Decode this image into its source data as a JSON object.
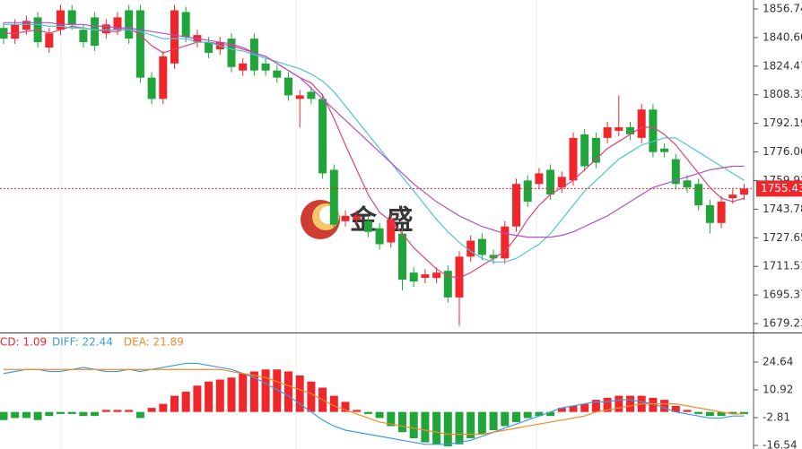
{
  "chart_data": [
    {
      "type": "candlestick",
      "ylim": [
        1674.2,
        1861.8
      ],
      "yticks": [
        1856.74,
        {
          "value": 1840.6,
          "label": "1840.60"
        },
        1824.47,
        1808.33,
        1792.19,
        1776.06,
        1759.92,
        1743.78,
        1727.65,
        1711.51,
        1695.37,
        1679.23
      ],
      "up_color": "#f0262b",
      "down_color": "#1fa53a",
      "open": [
        1846,
        1840,
        1845,
        1852,
        1835,
        1845,
        1856,
        1845,
        1852,
        1843,
        1845,
        1856,
        1856,
        1818,
        1806,
        1826,
        1855,
        1838,
        1838,
        1834,
        1840,
        1822,
        1840,
        1826,
        1822,
        1818,
        1806,
        1810,
        1806,
        1766,
        1737,
        1738,
        1737,
        1733,
        1725,
        1730,
        1708,
        1705,
        1705,
        1709,
        1694,
        1717,
        1727,
        1718,
        1716,
        1734,
        1760,
        1758,
        1766,
        1756,
        1760,
        1786,
        1784,
        1784,
        1788,
        1790,
        1784,
        1800,
        1778,
        1772,
        1760,
        1758,
        1746,
        1736,
        1750,
        1752
      ],
      "high": [
        1849,
        1851,
        1853,
        1855,
        1846,
        1859,
        1859,
        1848,
        1855,
        1851,
        1855,
        1859,
        1859,
        1821,
        1833,
        1859,
        1858,
        1845,
        1841,
        1841,
        1843,
        1829,
        1843,
        1829,
        1825,
        1821,
        1811,
        1813,
        1809,
        1769,
        1743,
        1743,
        1740,
        1736,
        1741,
        1733,
        1711,
        1710,
        1711,
        1712,
        1720,
        1729,
        1730,
        1721,
        1737,
        1761,
        1763,
        1767,
        1769,
        1765,
        1787,
        1789,
        1787,
        1793,
        1808,
        1793,
        1803,
        1803,
        1781,
        1775,
        1763,
        1761,
        1749,
        1751,
        1755,
        1758
      ],
      "low": [
        1837,
        1837,
        1842,
        1835,
        1832,
        1842,
        1845,
        1835,
        1833,
        1840,
        1842,
        1837,
        1815,
        1803,
        1803,
        1823,
        1838,
        1835,
        1829,
        1831,
        1821,
        1819,
        1819,
        1819,
        1815,
        1805,
        1790,
        1803,
        1761,
        1732,
        1734,
        1735,
        1728,
        1721,
        1722,
        1698,
        1700,
        1702,
        1702,
        1691,
        1678,
        1714,
        1715,
        1713,
        1713,
        1731,
        1745,
        1755,
        1749,
        1753,
        1757,
        1765,
        1767,
        1781,
        1785,
        1783,
        1781,
        1773,
        1773,
        1755,
        1753,
        1743,
        1730,
        1733,
        1747,
        1749
      ],
      "close": [
        1840,
        1848,
        1850,
        1838,
        1843,
        1856,
        1848,
        1838,
        1836,
        1848,
        1852,
        1840,
        1818,
        1806,
        1830,
        1856,
        1841,
        1842,
        1832,
        1838,
        1824,
        1826,
        1822,
        1822,
        1818,
        1808,
        1808,
        1806,
        1764,
        1735,
        1740,
        1740,
        1731,
        1724,
        1738,
        1704,
        1703,
        1707,
        1708,
        1694,
        1717,
        1726,
        1718,
        1716,
        1734,
        1758,
        1748,
        1764,
        1752,
        1762,
        1784,
        1768,
        1770,
        1790,
        1790,
        1786,
        1800,
        1776,
        1776,
        1758,
        1756,
        1746,
        1736,
        1748,
        1752,
        1755.43
      ],
      "series": [
        {
          "color": "#e0407a",
          "values": [
            1843,
            1843,
            1844,
            1845,
            1843,
            1845,
            1847,
            1846,
            1845,
            1844,
            1844,
            1846,
            1842,
            1836,
            1832,
            1834,
            1836,
            1838,
            1838,
            1837,
            1836,
            1834,
            1832,
            1830,
            1826,
            1822,
            1818,
            1815,
            1808,
            1795,
            1780,
            1766,
            1752,
            1742,
            1737,
            1730,
            1722,
            1716,
            1710,
            1706,
            1705,
            1708,
            1712,
            1716,
            1720,
            1728,
            1738,
            1746,
            1752,
            1756,
            1760,
            1766,
            1772,
            1778,
            1782,
            1786,
            1790,
            1790,
            1786,
            1780,
            1772,
            1764,
            1756,
            1750,
            1748,
            1750
          ]
        },
        {
          "color": "#4cc3d9",
          "values": [
            1848,
            1848,
            1848,
            1848,
            1847,
            1847,
            1846,
            1846,
            1845,
            1845,
            1845,
            1845,
            1844,
            1842,
            1840,
            1840,
            1840,
            1838,
            1838,
            1836,
            1834,
            1833,
            1831,
            1829,
            1827,
            1825,
            1823,
            1820,
            1816,
            1810,
            1802,
            1794,
            1786,
            1778,
            1770,
            1762,
            1754,
            1746,
            1738,
            1731,
            1725,
            1720,
            1716,
            1714,
            1714,
            1716,
            1720,
            1724,
            1730,
            1738,
            1746,
            1754,
            1760,
            1766,
            1772,
            1776,
            1780,
            1782,
            1784,
            1784,
            1780,
            1776,
            1772,
            1768,
            1764,
            1760
          ]
        },
        {
          "color": "#b04fc8",
          "values": [
            1849,
            1849,
            1849,
            1849,
            1849,
            1848,
            1848,
            1848,
            1847,
            1847,
            1846,
            1846,
            1845,
            1844,
            1843,
            1842,
            1841,
            1840,
            1839,
            1838,
            1837,
            1835,
            1832,
            1830,
            1826,
            1822,
            1818,
            1812,
            1806,
            1800,
            1794,
            1788,
            1782,
            1776,
            1770,
            1764,
            1758,
            1753,
            1748,
            1744,
            1740,
            1737,
            1734,
            1732,
            1730,
            1729,
            1728,
            1728,
            1728,
            1729,
            1731,
            1734,
            1737,
            1740,
            1744,
            1748,
            1752,
            1756,
            1758,
            1760,
            1762,
            1764,
            1766,
            1767,
            1768,
            1768
          ]
        }
      ],
      "last_price": 1755.43,
      "last_price_color": "#f0262b"
    },
    {
      "type": "macd",
      "ylim": [
        -18.3,
        38.8
      ],
      "yticks": [
        24.64,
        10.92,
        -2.81,
        -16.54
      ],
      "histogram": {
        "name": "CD: 1.09",
        "up_color": "#f0262b",
        "down_color": "#1fa53a",
        "values": [
          -4,
          -3,
          -3,
          -4,
          -2,
          -1,
          -1,
          -2,
          -2,
          1,
          1,
          1,
          -3,
          2,
          4,
          8,
          10,
          13,
          15,
          16,
          17,
          19,
          20,
          21,
          21,
          20,
          18,
          15,
          12,
          8,
          5,
          1,
          -1,
          -3,
          -7,
          -10,
          -13,
          -15,
          -16,
          -17,
          -16,
          -13,
          -11,
          -9,
          -7,
          -5,
          -3,
          -2,
          -2,
          2,
          3,
          4,
          6,
          7,
          8,
          8,
          8,
          7,
          6,
          3,
          1,
          -1,
          -2,
          -2,
          -1,
          -1
        ]
      },
      "series": [
        {
          "name": "DIFF: 22.44",
          "color": "#3d9be0",
          "values": [
            19,
            20,
            21,
            21,
            20,
            20,
            21,
            22,
            21,
            20,
            20,
            21,
            20,
            21,
            22,
            23,
            24,
            24,
            23,
            22,
            21,
            19,
            17,
            14,
            11,
            8,
            4,
            0,
            -4,
            -7,
            -9,
            -10,
            -11,
            -12,
            -13,
            -14,
            -15,
            -16,
            -16,
            -16,
            -15,
            -14,
            -12,
            -10,
            -8,
            -6,
            -4,
            -2,
            0,
            2,
            3,
            4,
            5,
            5,
            6,
            6,
            5,
            4,
            2,
            0,
            -1,
            -2,
            -3,
            -3,
            -2,
            -2
          ]
        },
        {
          "name": "DEA: 21.89",
          "color": "#f08a2c",
          "values": [
            21,
            21,
            21,
            21,
            21,
            21,
            21,
            21,
            21,
            21,
            21,
            21,
            21,
            21,
            21,
            21,
            21,
            21,
            21,
            21,
            20,
            19,
            18,
            17,
            15,
            13,
            11,
            9,
            6,
            3,
            1,
            -1,
            -3,
            -5,
            -6,
            -7,
            -8,
            -9,
            -10,
            -11,
            -11,
            -11,
            -11,
            -10,
            -9,
            -8,
            -7,
            -6,
            -5,
            -4,
            -3,
            -2,
            0,
            1,
            2,
            3,
            4,
            4,
            4,
            4,
            3,
            2,
            1,
            0,
            -1,
            -1
          ]
        }
      ]
    }
  ],
  "watermark": "金 盛"
}
